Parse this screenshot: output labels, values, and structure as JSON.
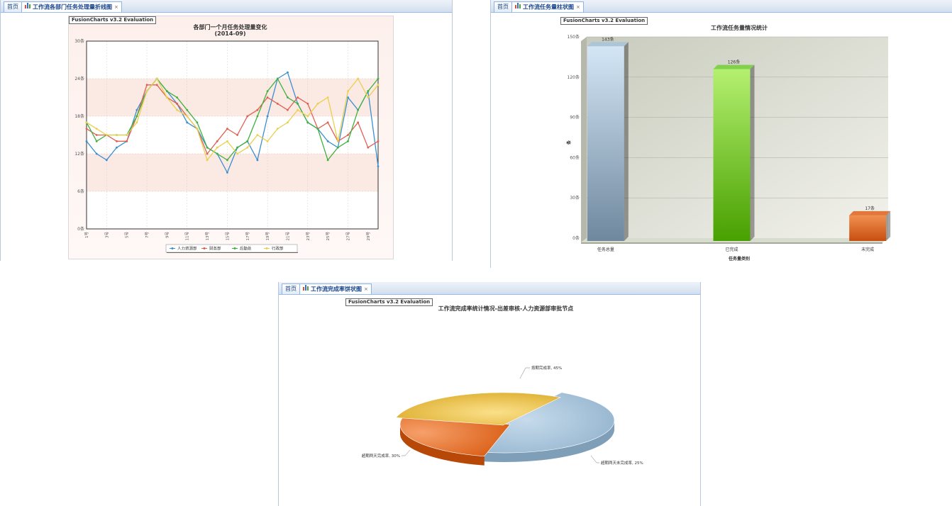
{
  "panels": [
    {
      "tabs": [
        {
          "label": "首页",
          "active": false
        },
        {
          "label": "工作流各部门任务处理量折线图",
          "active": true
        }
      ],
      "eval_label": "FusionCharts v3.2 Evaluation"
    },
    {
      "tabs": [
        {
          "label": "首页",
          "active": false
        },
        {
          "label": "工作流任务量柱状图",
          "active": true
        }
      ],
      "eval_label": "FusionCharts v3.2 Evaluation"
    },
    {
      "tabs": [
        {
          "label": "首页",
          "active": false
        },
        {
          "label": "工作流完成率饼状图",
          "active": true
        }
      ],
      "eval_label": "FusionCharts v3.2 Evaluation"
    }
  ],
  "close_symbol": "×",
  "chart_data": [
    {
      "type": "line",
      "title": "各部门一个月任务处理量变化",
      "subtitle": "(2014-09)",
      "x": [
        "1号",
        "2号",
        "3号",
        "4号",
        "5号",
        "6号",
        "7号",
        "8号",
        "9号",
        "10号",
        "11号",
        "12号",
        "13号",
        "14号",
        "15号",
        "16号",
        "17号",
        "18号",
        "19号",
        "20号",
        "21号",
        "22号",
        "23号",
        "24号",
        "25号",
        "26号",
        "27号",
        "28号",
        "29号",
        "30号"
      ],
      "x_tick_labels": [
        "1号",
        "3号",
        "5号",
        "7号",
        "9号",
        "11号",
        "13号",
        "15号",
        "17号",
        "19号",
        "21号",
        "23号",
        "25号",
        "27号",
        "29号"
      ],
      "y_ticks": [
        "0条",
        "6条",
        "12条",
        "18条",
        "24条",
        "30条"
      ],
      "ylim": [
        0,
        30
      ],
      "series": [
        {
          "name": "人力资源部",
          "color": "#3a8fd0",
          "values": [
            14,
            12,
            11,
            13,
            14,
            19,
            22,
            24,
            22,
            20,
            17,
            16,
            13,
            12,
            9,
            13,
            14,
            11,
            18,
            24,
            25,
            20,
            17,
            16,
            14,
            13,
            21,
            19,
            22,
            10
          ]
        },
        {
          "name": "财务部",
          "color": "#e06050",
          "values": [
            16,
            15,
            15,
            14,
            14,
            18,
            23,
            23,
            21,
            20,
            18,
            16,
            12,
            14,
            16,
            15,
            18,
            19,
            21,
            20,
            19,
            21,
            20,
            16,
            17,
            14,
            15,
            17,
            13,
            14
          ]
        },
        {
          "name": "后勤处",
          "color": "#40b040",
          "values": [
            17,
            14,
            15,
            15,
            15,
            18,
            22,
            24,
            22,
            21,
            19,
            17,
            13,
            12,
            11,
            13,
            14,
            18,
            22,
            24,
            21,
            20,
            17,
            16,
            11,
            13,
            14,
            19,
            22,
            24
          ]
        },
        {
          "name": "行政部",
          "color": "#e8d050",
          "values": [
            17,
            16,
            15,
            15,
            15,
            17,
            22,
            24,
            21,
            19,
            18,
            16,
            11,
            13,
            14,
            12,
            13,
            15,
            14,
            16,
            17,
            19,
            18,
            20,
            21,
            14,
            22,
            24,
            21,
            23
          ]
        }
      ],
      "legend": "bottom"
    },
    {
      "type": "bar",
      "title": "工作流任务量情况统计",
      "xlabel": "任务量类别",
      "ylabel": "条",
      "categories": [
        "任务总量",
        "已完成",
        "未完成"
      ],
      "values": [
        143,
        126,
        17
      ],
      "value_labels": [
        "143条",
        "126条",
        "17条"
      ],
      "colors": [
        "#a9c4dc",
        "#78d040",
        "#e06828"
      ],
      "y_ticks": [
        "0条",
        "30条",
        "60条",
        "90条",
        "120条",
        "150条"
      ],
      "ylim": [
        0,
        150
      ]
    },
    {
      "type": "pie",
      "title": "工作流完成率统计情况-出差审核-人力资源部审批节点",
      "slices": [
        {
          "label": "按期完成率, 45%",
          "value": 45,
          "color": "#9cbcd6"
        },
        {
          "label": "超期两天未完成率, 25%",
          "value": 25,
          "color": "#e36a20"
        },
        {
          "label": "超期两天完成率, 30%",
          "value": 30,
          "color": "#e8c040"
        }
      ]
    }
  ]
}
